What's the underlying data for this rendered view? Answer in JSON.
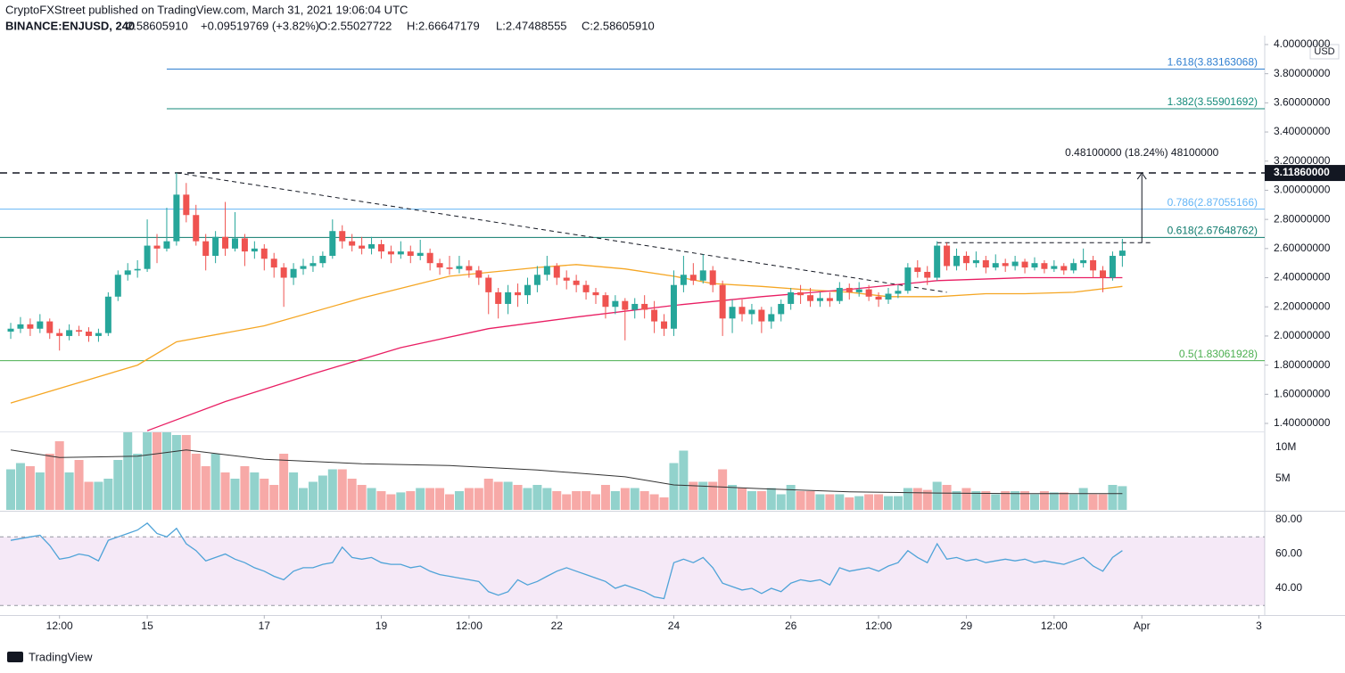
{
  "header": {
    "publisher": "CryptoFXStreet published on TradingView.com, March 31, 2021 19:06:04 UTC",
    "symbol": "BINANCE:ENJUSD, 240",
    "last": "2.58605910",
    "change": "+0.09519769 (+3.82%)",
    "open": "O:2.55027722",
    "high": "H:2.66647179",
    "low": "L:2.47488555",
    "close": "C:2.58605910"
  },
  "footer": {
    "brand": "TradingView"
  },
  "chart_data": {
    "type": "candlestick",
    "currency": "USD",
    "up_color": "#26a69a",
    "down_color": "#ef5350",
    "grid": false,
    "xlim": [
      -1.1,
      128.6
    ],
    "xticks": [
      {
        "value": 5,
        "label": "12:00"
      },
      {
        "value": 14,
        "label": "15"
      },
      {
        "value": 26,
        "label": "17"
      },
      {
        "value": 38,
        "label": "19"
      },
      {
        "value": 47,
        "label": "12:00"
      },
      {
        "value": 56,
        "label": "22"
      },
      {
        "value": 68,
        "label": "24"
      },
      {
        "value": 80,
        "label": "26"
      },
      {
        "value": 89,
        "label": "12:00"
      },
      {
        "value": 98,
        "label": "29"
      },
      {
        "value": 107,
        "label": "12:00"
      },
      {
        "value": 116,
        "label": "Apr"
      },
      {
        "value": 128,
        "label": "3"
      }
    ],
    "ylim": [
      1.345,
      4.061
    ],
    "yticks": [
      {
        "value": 1.4,
        "label": "1.40000000"
      },
      {
        "value": 1.6,
        "label": "1.60000000"
      },
      {
        "value": 1.8,
        "label": "1.80000000"
      },
      {
        "value": 2.0,
        "label": "2.00000000"
      },
      {
        "value": 2.2,
        "label": "2.20000000"
      },
      {
        "value": 2.4,
        "label": "2.40000000"
      },
      {
        "value": 2.6,
        "label": "2.60000000"
      },
      {
        "value": 2.8,
        "label": "2.80000000"
      },
      {
        "value": 3.0,
        "label": "3.00000000"
      },
      {
        "value": 3.2,
        "label": "3.20000000"
      },
      {
        "value": 3.4,
        "label": "3.40000000"
      },
      {
        "value": 3.6,
        "label": "3.60000000"
      },
      {
        "value": 3.8,
        "label": "3.80000000"
      },
      {
        "value": 4.0,
        "label": "4.00000000"
      }
    ],
    "ohlc": [
      [
        2.03,
        2.09,
        1.98,
        2.05
      ],
      [
        2.05,
        2.13,
        2.02,
        2.08
      ],
      [
        2.08,
        2.12,
        2.0,
        2.05
      ],
      [
        2.05,
        2.15,
        2.02,
        2.1
      ],
      [
        2.1,
        2.12,
        1.98,
        2.02
      ],
      [
        2.02,
        2.05,
        1.9,
        2.0
      ],
      [
        2.0,
        2.08,
        1.97,
        2.04
      ],
      [
        2.04,
        2.07,
        2.0,
        2.03
      ],
      [
        2.03,
        2.06,
        1.96,
        2.0
      ],
      [
        2.0,
        2.05,
        1.96,
        2.02
      ],
      [
        2.02,
        2.3,
        2.0,
        2.27
      ],
      [
        2.27,
        2.45,
        2.24,
        2.42
      ],
      [
        2.42,
        2.5,
        2.38,
        2.45
      ],
      [
        2.45,
        2.52,
        2.4,
        2.46
      ],
      [
        2.46,
        2.8,
        2.44,
        2.62
      ],
      [
        2.62,
        2.7,
        2.5,
        2.6
      ],
      [
        2.6,
        2.88,
        2.58,
        2.65
      ],
      [
        2.65,
        3.12,
        2.62,
        2.97
      ],
      [
        2.97,
        3.05,
        2.78,
        2.83
      ],
      [
        2.83,
        2.9,
        2.62,
        2.65
      ],
      [
        2.65,
        2.7,
        2.45,
        2.55
      ],
      [
        2.55,
        2.72,
        2.5,
        2.68
      ],
      [
        2.68,
        2.92,
        2.55,
        2.6
      ],
      [
        2.6,
        2.85,
        2.58,
        2.67
      ],
      [
        2.67,
        2.7,
        2.48,
        2.58
      ],
      [
        2.58,
        2.65,
        2.53,
        2.6
      ],
      [
        2.6,
        2.63,
        2.45,
        2.53
      ],
      [
        2.53,
        2.57,
        2.4,
        2.47
      ],
      [
        2.47,
        2.5,
        2.2,
        2.4
      ],
      [
        2.4,
        2.5,
        2.35,
        2.46
      ],
      [
        2.46,
        2.53,
        2.42,
        2.48
      ],
      [
        2.48,
        2.55,
        2.44,
        2.5
      ],
      [
        2.5,
        2.58,
        2.47,
        2.55
      ],
      [
        2.55,
        2.8,
        2.53,
        2.72
      ],
      [
        2.72,
        2.76,
        2.6,
        2.65
      ],
      [
        2.65,
        2.7,
        2.58,
        2.62
      ],
      [
        2.62,
        2.68,
        2.56,
        2.6
      ],
      [
        2.6,
        2.68,
        2.56,
        2.63
      ],
      [
        2.63,
        2.66,
        2.53,
        2.58
      ],
      [
        2.58,
        2.62,
        2.5,
        2.56
      ],
      [
        2.56,
        2.65,
        2.53,
        2.58
      ],
      [
        2.58,
        2.62,
        2.5,
        2.55
      ],
      [
        2.55,
        2.66,
        2.52,
        2.57
      ],
      [
        2.57,
        2.6,
        2.45,
        2.5
      ],
      [
        2.5,
        2.53,
        2.42,
        2.47
      ],
      [
        2.47,
        2.55,
        2.42,
        2.46
      ],
      [
        2.46,
        2.55,
        2.43,
        2.48
      ],
      [
        2.48,
        2.52,
        2.4,
        2.45
      ],
      [
        2.45,
        2.48,
        2.35,
        2.4
      ],
      [
        2.4,
        2.42,
        2.15,
        2.3
      ],
      [
        2.3,
        2.33,
        2.12,
        2.22
      ],
      [
        2.22,
        2.35,
        2.15,
        2.3
      ],
      [
        2.3,
        2.36,
        2.2,
        2.28
      ],
      [
        2.28,
        2.4,
        2.22,
        2.35
      ],
      [
        2.35,
        2.48,
        2.3,
        2.42
      ],
      [
        2.42,
        2.55,
        2.38,
        2.48
      ],
      [
        2.48,
        2.5,
        2.35,
        2.4
      ],
      [
        2.4,
        2.45,
        2.32,
        2.38
      ],
      [
        2.38,
        2.42,
        2.3,
        2.35
      ],
      [
        2.35,
        2.38,
        2.25,
        2.3
      ],
      [
        2.3,
        2.33,
        2.22,
        2.28
      ],
      [
        2.28,
        2.3,
        2.12,
        2.2
      ],
      [
        2.2,
        2.28,
        2.15,
        2.24
      ],
      [
        2.24,
        2.26,
        1.97,
        2.18
      ],
      [
        2.18,
        2.26,
        2.12,
        2.22
      ],
      [
        2.22,
        2.28,
        2.12,
        2.18
      ],
      [
        2.18,
        2.24,
        2.02,
        2.1
      ],
      [
        2.1,
        2.15,
        2.0,
        2.05
      ],
      [
        2.05,
        2.45,
        2.0,
        2.35
      ],
      [
        2.35,
        2.55,
        2.3,
        2.42
      ],
      [
        2.42,
        2.5,
        2.35,
        2.38
      ],
      [
        2.38,
        2.56,
        2.36,
        2.45
      ],
      [
        2.45,
        2.48,
        2.3,
        2.35
      ],
      [
        2.35,
        2.38,
        2.0,
        2.12
      ],
      [
        2.12,
        2.25,
        2.02,
        2.2
      ],
      [
        2.2,
        2.25,
        2.1,
        2.15
      ],
      [
        2.15,
        2.22,
        2.08,
        2.18
      ],
      [
        2.18,
        2.2,
        2.02,
        2.1
      ],
      [
        2.1,
        2.2,
        2.05,
        2.15
      ],
      [
        2.15,
        2.25,
        2.1,
        2.22
      ],
      [
        2.22,
        2.33,
        2.18,
        2.3
      ],
      [
        2.3,
        2.35,
        2.22,
        2.28
      ],
      [
        2.28,
        2.33,
        2.2,
        2.24
      ],
      [
        2.24,
        2.3,
        2.2,
        2.26
      ],
      [
        2.26,
        2.3,
        2.2,
        2.24
      ],
      [
        2.24,
        2.37,
        2.22,
        2.33
      ],
      [
        2.33,
        2.36,
        2.25,
        2.3
      ],
      [
        2.3,
        2.37,
        2.27,
        2.32
      ],
      [
        2.32,
        2.35,
        2.24,
        2.27
      ],
      [
        2.27,
        2.3,
        2.2,
        2.25
      ],
      [
        2.25,
        2.33,
        2.22,
        2.29
      ],
      [
        2.29,
        2.35,
        2.26,
        2.31
      ],
      [
        2.31,
        2.5,
        2.29,
        2.47
      ],
      [
        2.47,
        2.52,
        2.4,
        2.44
      ],
      [
        2.44,
        2.48,
        2.35,
        2.4
      ],
      [
        2.4,
        2.65,
        2.38,
        2.62
      ],
      [
        2.62,
        2.64,
        2.45,
        2.48
      ],
      [
        2.48,
        2.6,
        2.45,
        2.55
      ],
      [
        2.55,
        2.58,
        2.45,
        2.5
      ],
      [
        2.5,
        2.58,
        2.47,
        2.52
      ],
      [
        2.52,
        2.55,
        2.43,
        2.47
      ],
      [
        2.47,
        2.56,
        2.45,
        2.5
      ],
      [
        2.5,
        2.53,
        2.44,
        2.48
      ],
      [
        2.48,
        2.55,
        2.45,
        2.51
      ],
      [
        2.51,
        2.53,
        2.43,
        2.47
      ],
      [
        2.47,
        2.54,
        2.45,
        2.5
      ],
      [
        2.5,
        2.52,
        2.43,
        2.46
      ],
      [
        2.46,
        2.52,
        2.44,
        2.48
      ],
      [
        2.48,
        2.5,
        2.42,
        2.45
      ],
      [
        2.45,
        2.53,
        2.43,
        2.5
      ],
      [
        2.5,
        2.6,
        2.47,
        2.52
      ],
      [
        2.52,
        2.55,
        2.4,
        2.45
      ],
      [
        2.45,
        2.48,
        2.3,
        2.4
      ],
      [
        2.4,
        2.58,
        2.38,
        2.55
      ],
      [
        2.55027722,
        2.66647179,
        2.47488555,
        2.5860591
      ]
    ],
    "levels": [
      {
        "label": "1.618(3.83163068)",
        "value": 3.83163068,
        "color": "#2f7fd0",
        "start": 16
      },
      {
        "label": "1.382(3.55901692)",
        "value": 3.55901692,
        "color": "#138a7a",
        "start": 16
      },
      {
        "label": "0.786(2.87055166)",
        "value": 2.87055166,
        "color": "#64b5f6"
      },
      {
        "label": "0.618(2.67648762)",
        "value": 2.67648762,
        "color": "#0c7a6c"
      },
      {
        "label": "0.5(1.83061928)",
        "value": 1.83061928,
        "color": "#4caf50"
      }
    ],
    "resistance": {
      "value": 3.1186,
      "label": "3.11860000"
    },
    "breakout": {
      "value": 2.64,
      "start": 95,
      "end": 117
    },
    "trendline": {
      "x": [
        17,
        96
      ],
      "values": [
        3.12,
        2.3
      ]
    },
    "measure": {
      "x": 116,
      "values": [
        2.64,
        3.1186
      ],
      "label": "0.48100000 (18.24%) 48100000"
    },
    "moving_averages": [
      {
        "color": "#f5a623",
        "x": [
          0,
          13,
          17,
          26,
          36,
          45,
          54,
          58,
          63,
          68,
          72,
          77,
          81,
          86,
          90,
          95,
          100,
          104,
          109,
          114
        ],
        "values": [
          1.54,
          1.8,
          1.96,
          2.07,
          2.26,
          2.41,
          2.47,
          2.49,
          2.46,
          2.41,
          2.36,
          2.34,
          2.32,
          2.3,
          2.27,
          2.27,
          2.29,
          2.29,
          2.3,
          2.34
        ]
      },
      {
        "color": "#e91e63",
        "x": [
          14,
          22,
          31,
          40,
          49,
          58,
          68,
          77,
          86,
          95,
          104,
          114
        ],
        "values": [
          1.35,
          1.55,
          1.74,
          1.92,
          2.05,
          2.13,
          2.21,
          2.27,
          2.32,
          2.38,
          2.4,
          2.4
        ]
      }
    ],
    "volume": {
      "ylim": [
        0,
        12.43
      ],
      "yticks": [
        {
          "value": 10,
          "label": "10M"
        },
        {
          "value": 5,
          "label": "5M"
        }
      ],
      "values": [
        6.5,
        7.5,
        7,
        6,
        9,
        11,
        6,
        8,
        4.5,
        4.5,
        5,
        8,
        13,
        9,
        13,
        13,
        13,
        12,
        12,
        9,
        7,
        9,
        6,
        5,
        7,
        6,
        5,
        4,
        9,
        6,
        3.5,
        4.5,
        5.5,
        6.5,
        6.5,
        5,
        4,
        3.5,
        3,
        2.5,
        2.8,
        3,
        3.5,
        3.5,
        3.5,
        2.5,
        3,
        3.5,
        3.5,
        5,
        4.5,
        4.5,
        4,
        3.5,
        4,
        3.5,
        3,
        2.5,
        3,
        3,
        2.5,
        4,
        3,
        3.5,
        3.5,
        3,
        2.5,
        2,
        7.5,
        9.5,
        4.5,
        4.5,
        4.5,
        6.5,
        4,
        3.5,
        3,
        3,
        3.5,
        2.5,
        4,
        3,
        3,
        2.5,
        2.5,
        2.5,
        2,
        2.2,
        2.5,
        2.5,
        2.2,
        2.2,
        3.5,
        3.5,
        3.2,
        4.5,
        4,
        3,
        3.5,
        3,
        3,
        2.5,
        3,
        3,
        3,
        2.5,
        3,
        2.8,
        2.8,
        2.5,
        3.5,
        2.5,
        2.5,
        4,
        3.8
      ],
      "ma": {
        "x": [
          0,
          5,
          13,
          18,
          26,
          36,
          45,
          54,
          63,
          68,
          77,
          86,
          95,
          104,
          114
        ],
        "values": [
          9.6,
          8.4,
          8.6,
          9.6,
          8.1,
          7.4,
          7.1,
          6.4,
          5.3,
          4.0,
          3.4,
          2.9,
          2.7,
          2.6,
          2.6
        ]
      }
    },
    "rsi": {
      "ylim": [
        24.4,
        84.2
      ],
      "band": [
        30,
        70
      ],
      "color": "#4fa3d8",
      "yticks": [
        {
          "value": 80,
          "label": "80.00"
        },
        {
          "value": 60,
          "label": "60.00"
        },
        {
          "value": 40,
          "label": "40.00"
        }
      ],
      "values": [
        68,
        69,
        70,
        71,
        65,
        57,
        58,
        60,
        59,
        56,
        68,
        70,
        72,
        74,
        78,
        72,
        70,
        75,
        66,
        62,
        56,
        58,
        60,
        57,
        55,
        52,
        50,
        47,
        45,
        50,
        52,
        52,
        54,
        55,
        64,
        58,
        57,
        58,
        55,
        54,
        54,
        52,
        53,
        50,
        48,
        47,
        46,
        45,
        44,
        38,
        36,
        38,
        45,
        42,
        44,
        47,
        50,
        52,
        50,
        48,
        46,
        44,
        40,
        42,
        40,
        38,
        35,
        34,
        55,
        57,
        55,
        58,
        52,
        43,
        41,
        39,
        40,
        37,
        40,
        38,
        43,
        45,
        44,
        45,
        42,
        52,
        50,
        51,
        52,
        50,
        53,
        55,
        62,
        58,
        55,
        66,
        57,
        58,
        56,
        57,
        55,
        56,
        57,
        56,
        57,
        55,
        56,
        55,
        54,
        56,
        58,
        53,
        50,
        58,
        62
      ]
    }
  }
}
